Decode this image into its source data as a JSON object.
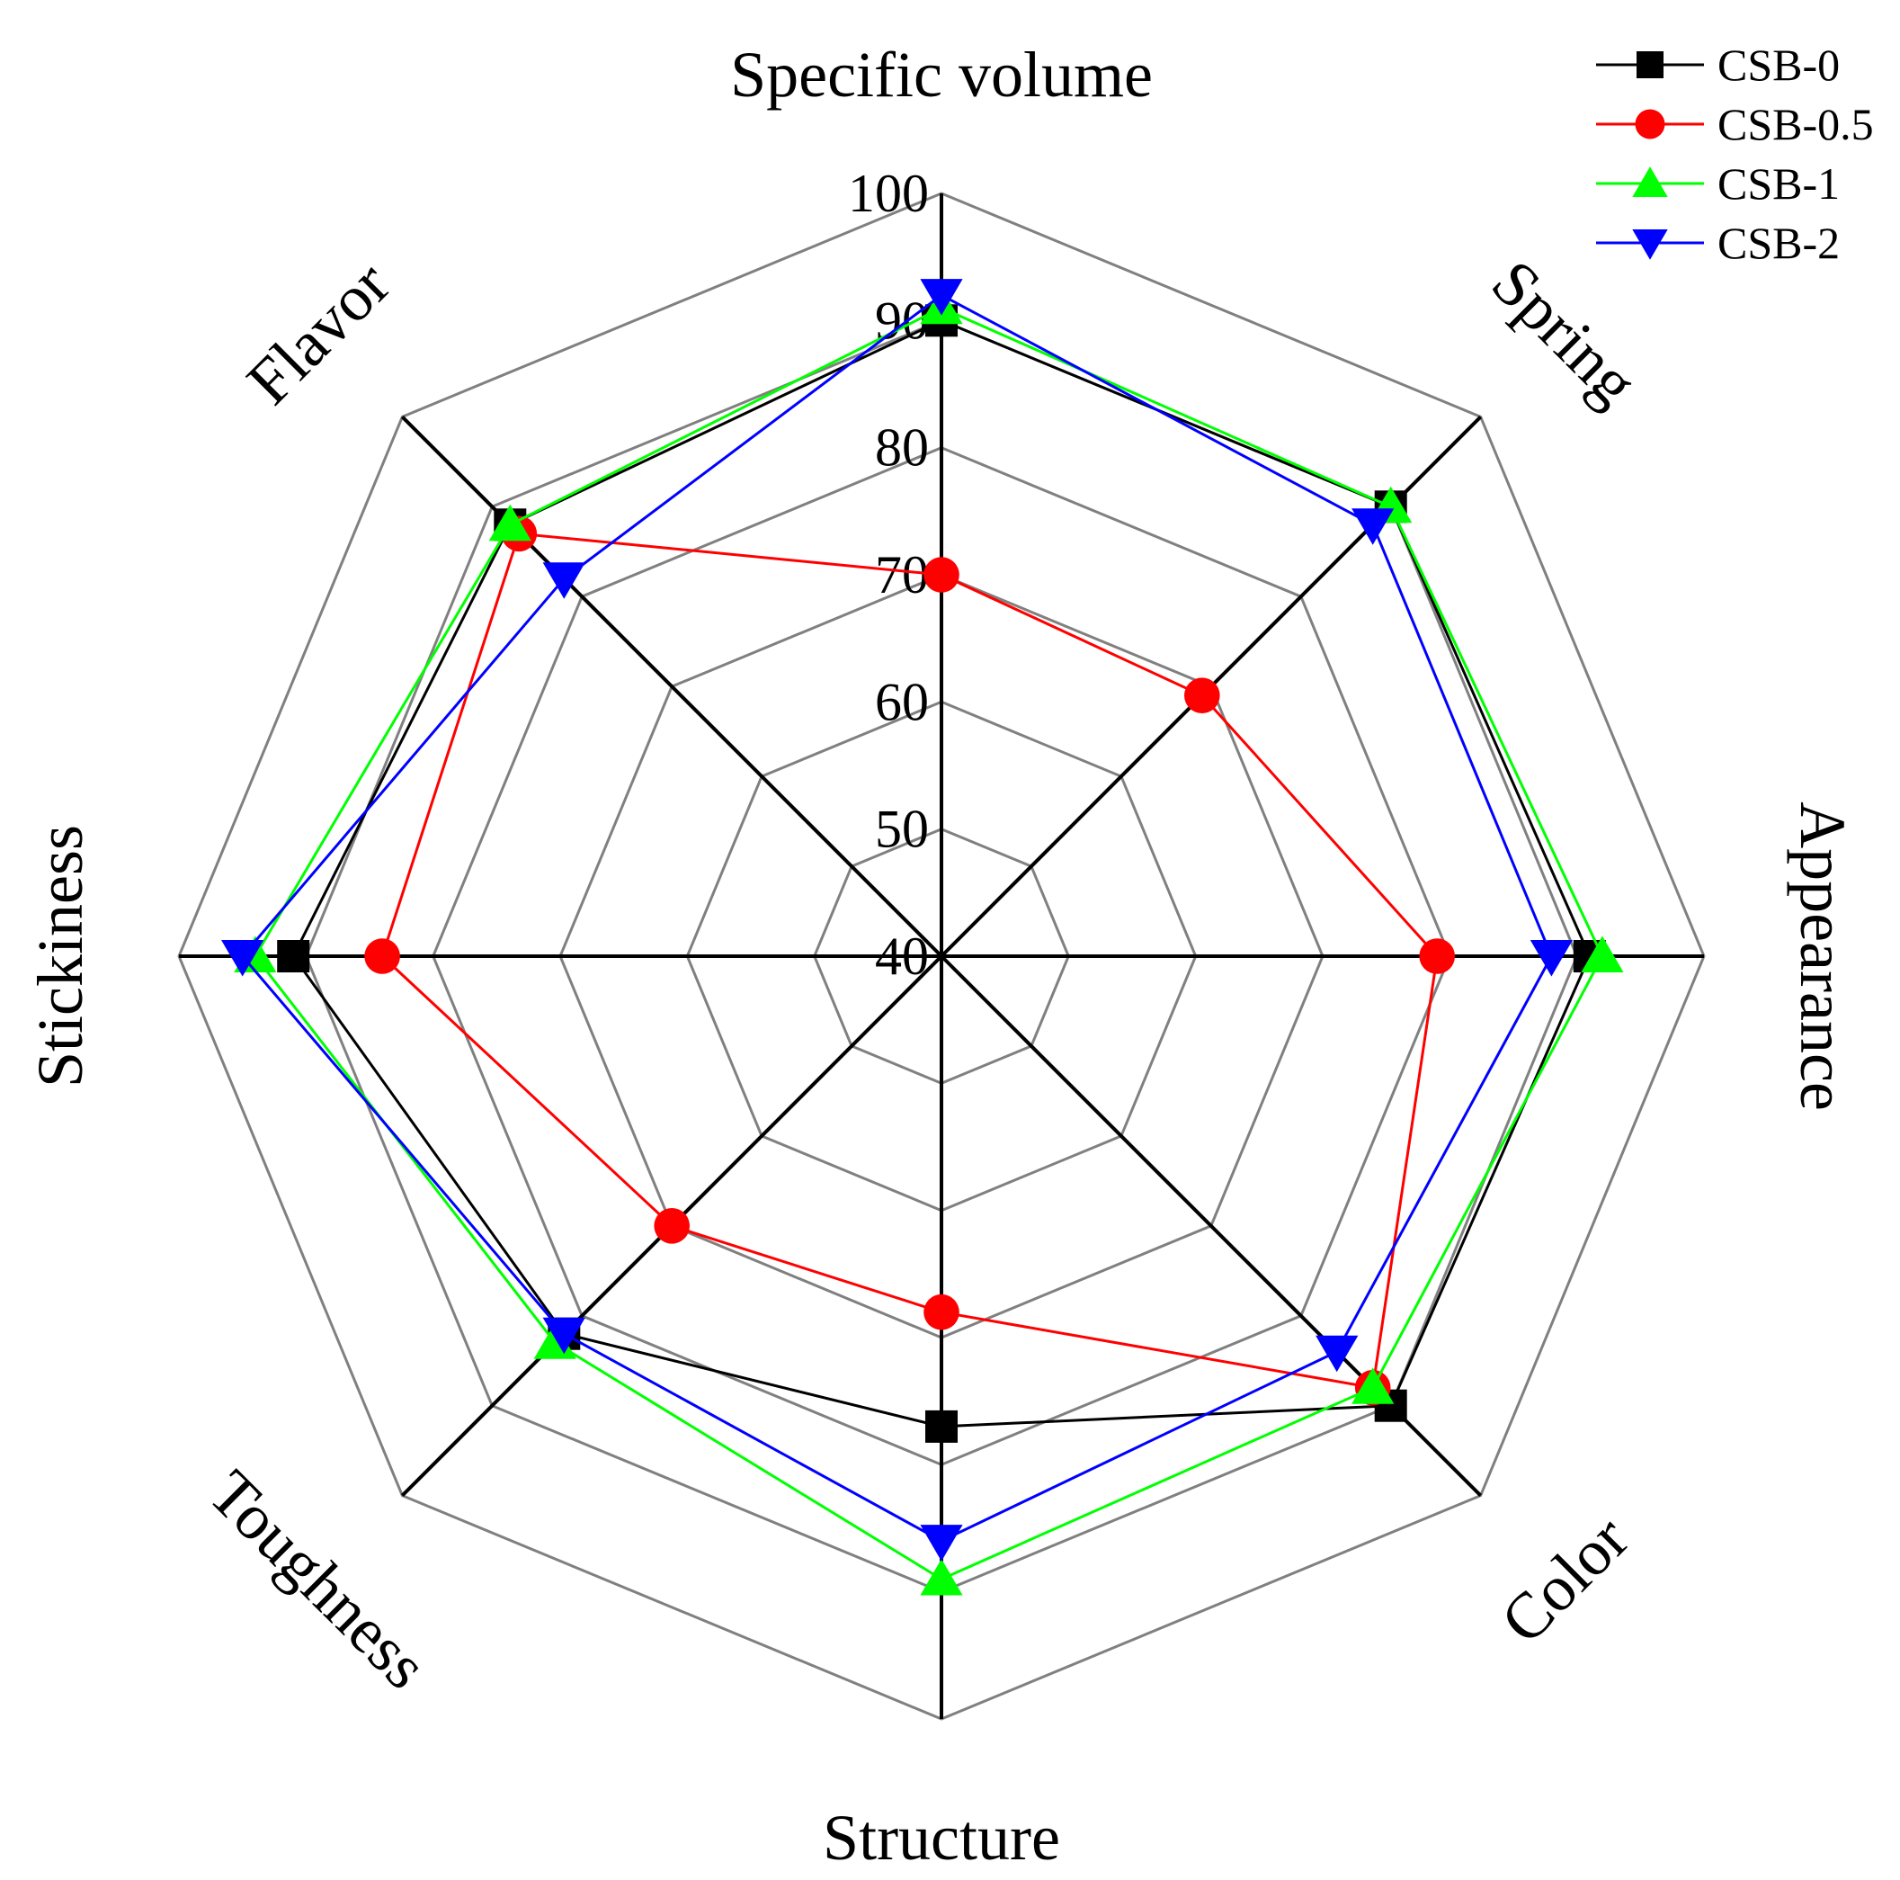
{
  "chart_data": {
    "type": "radar",
    "title": "",
    "axes": [
      "Specific volume",
      "Spring",
      "Appearance",
      "Color",
      "Structure",
      "Toughness",
      "Stickiness",
      "Flavor"
    ],
    "range": [
      40,
      100
    ],
    "ticks": [
      40,
      50,
      60,
      70,
      80,
      90,
      100
    ],
    "grid": true,
    "legend_position": "top-right",
    "series": [
      {
        "name": "CSB-0",
        "color": "#000000",
        "marker": "square",
        "values": [
          90,
          90,
          91,
          90,
          77,
          82,
          91,
          88
        ]
      },
      {
        "name": "CSB-0.5",
        "color": "#ff0000",
        "marker": "circle",
        "values": [
          70,
          69,
          79,
          88,
          68,
          70,
          84,
          87
        ]
      },
      {
        "name": "CSB-1",
        "color": "#00ff00",
        "marker": "triangle-up",
        "values": [
          91,
          90,
          92,
          88,
          89,
          83,
          94,
          88
        ]
      },
      {
        "name": "CSB-2",
        "color": "#0000ff",
        "marker": "triangle-down",
        "values": [
          92,
          88,
          88,
          84,
          86,
          82,
          95,
          82
        ]
      }
    ]
  }
}
